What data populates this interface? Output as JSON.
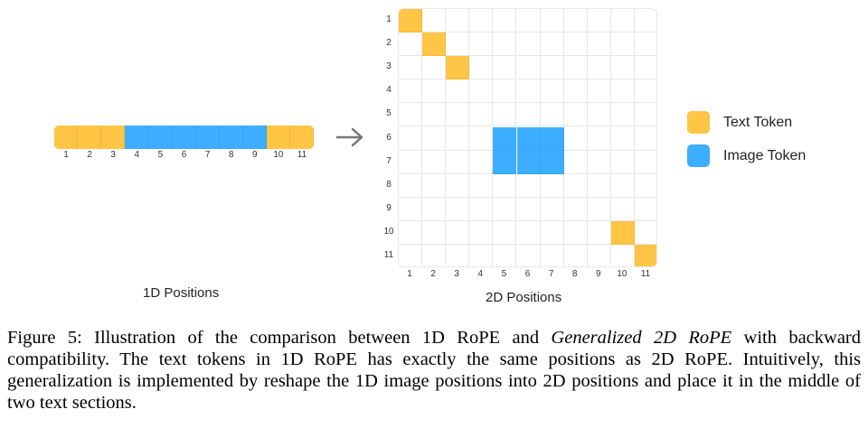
{
  "figure": {
    "colors": {
      "text": "#FFC544",
      "image": "#3DAEFF",
      "arrow": "#777777"
    },
    "sequence_1d": [
      "text",
      "text",
      "text",
      "image",
      "image",
      "image",
      "image",
      "image",
      "image",
      "text",
      "text"
    ],
    "positions_1d": [
      "1",
      "2",
      "3",
      "4",
      "5",
      "6",
      "7",
      "8",
      "9",
      "10",
      "11"
    ],
    "grid_rows": [
      "1",
      "2",
      "3",
      "4",
      "5",
      "6",
      "7",
      "8",
      "9",
      "10",
      "11"
    ],
    "grid_cols": [
      "1",
      "2",
      "3",
      "4",
      "5",
      "6",
      "7",
      "8",
      "9",
      "10",
      "11"
    ],
    "text_cells": [
      [
        1,
        1
      ],
      [
        2,
        2
      ],
      [
        3,
        3
      ],
      [
        10,
        10
      ],
      [
        11,
        11
      ]
    ],
    "image_cells": [
      [
        6,
        5
      ],
      [
        6,
        6
      ],
      [
        6,
        7
      ],
      [
        7,
        5
      ],
      [
        7,
        6
      ],
      [
        7,
        7
      ]
    ],
    "label_1d": "1D Positions",
    "label_2d": "2D Positions",
    "legend": [
      {
        "label": "Text Token",
        "type": "text"
      },
      {
        "label": "Image Token",
        "type": "image"
      }
    ]
  },
  "caption": {
    "prefix": "Figure 5: Illustration of the comparison between 1D RoPE and ",
    "emphasis": "Generalized 2D RoPE",
    "suffix": " with backward compatibility. The text tokens in 1D RoPE has exactly the same positions as 2D RoPE. Intuitively, this generalization is implemented by reshape the 1D image positions into 2D positions and place it in the middle of two text sections."
  }
}
